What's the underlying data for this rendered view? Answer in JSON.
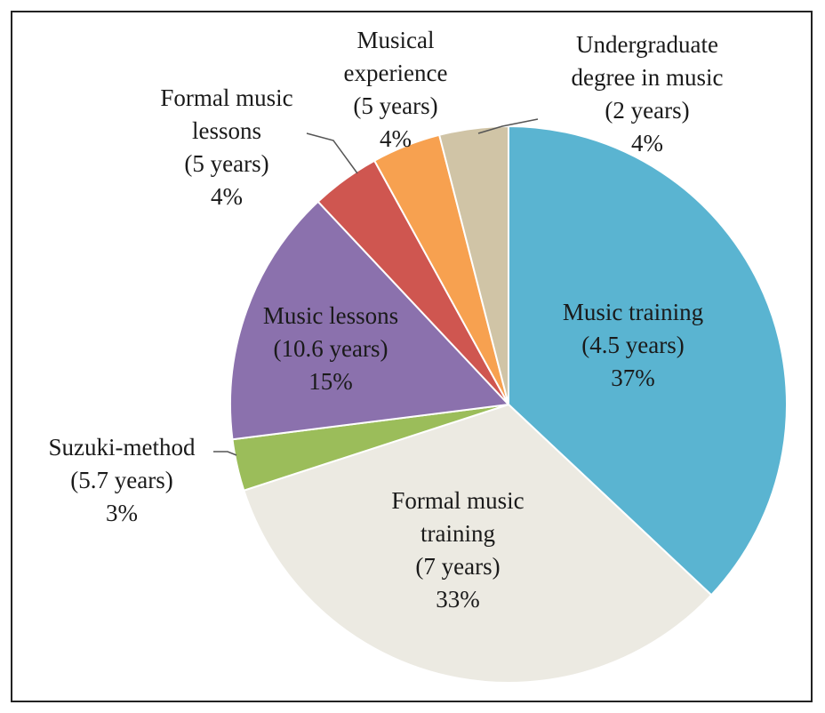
{
  "chart_data": {
    "type": "pie",
    "categories": [
      "Music training",
      "Formal music training",
      "Suzuki-method",
      "Music lessons",
      "Formal music lessons",
      "Musical experience",
      "Undergraduate degree in music"
    ],
    "durations": [
      "(4.5 years)",
      "(7 years)",
      "(5.7 years)",
      "(10.6 years)",
      "(5 years)",
      "(5 years)",
      "(2 years)"
    ],
    "values": [
      37,
      33,
      3,
      15,
      4,
      4,
      4
    ],
    "value_labels": [
      "37%",
      "33%",
      "3%",
      "15%",
      "4%",
      "4%",
      "4%"
    ],
    "colors": [
      "#5ab4d1",
      "#eceae2",
      "#9bbd5a",
      "#8b71ad",
      "#cf5650",
      "#f7a150",
      "#d0c4a6"
    ]
  }
}
